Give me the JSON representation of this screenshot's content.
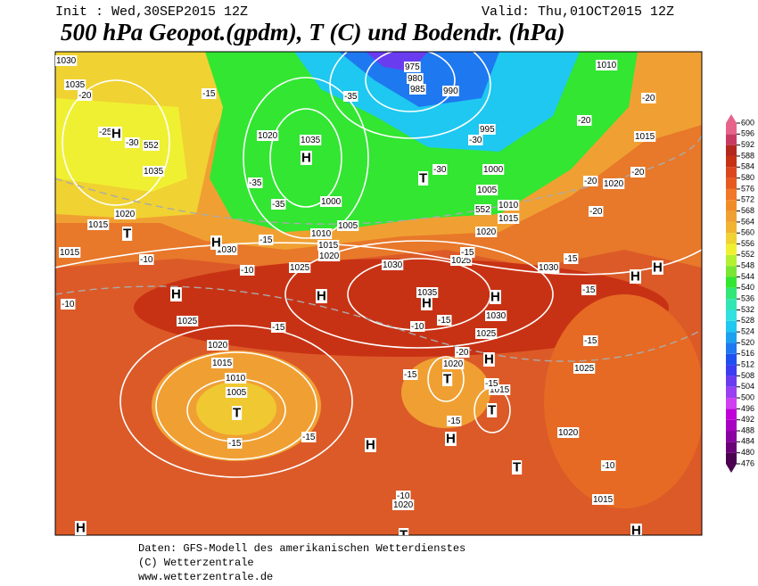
{
  "header": {
    "init": "Init : Wed,30SEP2015 12Z",
    "valid": "Valid: Thu,01OCT2015 12Z",
    "title": "500 hPa Geopot.(gpdm), T (C) und Bodendr. (hPa)"
  },
  "map": {
    "pressure_centers": [
      "H",
      "H",
      "H",
      "H",
      "H",
      "H",
      "H",
      "H",
      "H",
      "H",
      "H",
      "H",
      "H",
      "H",
      "T",
      "T",
      "T",
      "T",
      "T",
      "T",
      "T"
    ],
    "isobar_labels": [
      "1030",
      "1035",
      "1035",
      "1020",
      "1015",
      "1015",
      "1030",
      "1025",
      "1030",
      "1035",
      "1025",
      "1030",
      "1030",
      "1025",
      "1020",
      "1015",
      "1025",
      "1020",
      "1015",
      "1020",
      "1025",
      "1020",
      "1015",
      "1010",
      "1005",
      "1020",
      "1035",
      "1000",
      "1005",
      "1010",
      "1015",
      "1020",
      "995",
      "990",
      "975",
      "980",
      "985",
      "1010",
      "1015",
      "1020",
      "1000",
      "1005",
      "1010",
      "1015",
      "1020"
    ],
    "isotherm_labels": [
      "-20",
      "-25",
      "-30",
      "-15",
      "-35",
      "-30",
      "-30",
      "-20",
      "-20",
      "-20",
      "-20",
      "-20",
      "-15",
      "-15",
      "-15",
      "-15",
      "-10",
      "-15",
      "-15",
      "-15",
      "-15",
      "-15",
      "-10",
      "-10",
      "-15",
      "-10",
      "-10",
      "-10",
      "-15",
      "-15",
      "-20",
      "-35",
      "-35"
    ],
    "geopotential_labels": [
      "552",
      "552"
    ]
  },
  "colorbar": {
    "ticks": [
      476,
      480,
      484,
      488,
      492,
      496,
      500,
      504,
      508,
      512,
      516,
      520,
      524,
      528,
      532,
      536,
      540,
      544,
      548,
      552,
      556,
      560,
      564,
      568,
      572,
      576,
      580,
      584,
      588,
      592,
      596,
      600
    ],
    "colors": [
      "#4b0050",
      "#6a0078",
      "#8a00a0",
      "#a800c0",
      "#c000d8",
      "#d040f0",
      "#9a40f0",
      "#6a3cf0",
      "#3c3cf0",
      "#1e50f0",
      "#1e78f0",
      "#1ea0f0",
      "#1ec8f0",
      "#32e0e0",
      "#32e6b4",
      "#32e678",
      "#32e632",
      "#78e632",
      "#b4f032",
      "#f0f032",
      "#f0d232",
      "#f0b432",
      "#f0a032",
      "#f08c28",
      "#f07828",
      "#e65a1e",
      "#dc461e",
      "#c83214",
      "#b4281e",
      "#c83c64",
      "#e6648c"
    ]
  },
  "footer": {
    "line1": "Daten: GFS-Modell des amerikanischen Wetterdienstes",
    "line2": "(C) Wetterzentrale",
    "line3": "www.wetterzentrale.de"
  }
}
